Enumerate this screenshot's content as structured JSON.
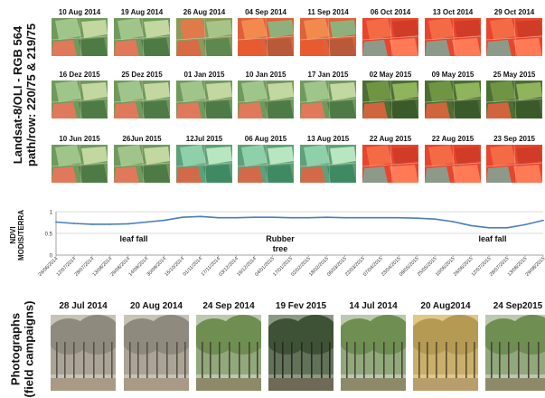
{
  "landsat": {
    "title_line1": "Landsat-8/OLI - RGB 564",
    "title_line2": "path/row: 220/75 & 219/75",
    "rows": [
      {
        "tiles": [
          {
            "date": "10 Aug 2014",
            "palette": "green"
          },
          {
            "date": "19 Aug 2014",
            "palette": "green"
          },
          {
            "date": "26 Aug 2014",
            "palette": "mixed"
          },
          {
            "date": "04 Sep 2014",
            "palette": "orange"
          },
          {
            "date": "11 Sep 2014",
            "palette": "orange"
          },
          {
            "date": "06 Oct 2014",
            "palette": "red"
          },
          {
            "date": "13 Oct 2014",
            "palette": "red"
          },
          {
            "date": "29 Oct 2014",
            "palette": "red"
          }
        ]
      },
      {
        "tiles": [
          {
            "date": "16 Dez 2015",
            "palette": "green"
          },
          {
            "date": "25 Dez 2015",
            "palette": "green"
          },
          {
            "date": "01 Jan 2015",
            "palette": "green"
          },
          {
            "date": "10 Jan 2015",
            "palette": "green"
          },
          {
            "date": "17 Jan 2015",
            "palette": "green"
          },
          {
            "date": "02 May 2015",
            "palette": "dark"
          },
          {
            "date": "09 May 2015",
            "palette": "dark"
          },
          {
            "date": "25 May 2015",
            "palette": "dark"
          }
        ]
      },
      {
        "tiles": [
          {
            "date": "10 Jun 2015",
            "palette": "green"
          },
          {
            "date": "26Jun 2015",
            "palette": "green"
          },
          {
            "date": "12Jul 2015",
            "palette": "cyan"
          },
          {
            "date": "06 Aug 2015",
            "palette": "cyan"
          },
          {
            "date": "13 Aug 2015",
            "palette": "cyan"
          },
          {
            "date": "22 Aug 2015",
            "palette": "red"
          },
          {
            "date": "22 Aug 2015",
            "palette": "red"
          },
          {
            "date": "23 Sep 2015",
            "palette": "red"
          }
        ]
      }
    ]
  },
  "ndvi": {
    "ylabel_line1": "NDVI",
    "ylabel_line2": "MODIS/TERRA",
    "annotations": [
      {
        "text": "leaf fall",
        "key": "leaf-fall-1"
      },
      {
        "text": "Rubber",
        "key": "rubber"
      },
      {
        "text": "tree",
        "key": "tree"
      },
      {
        "text": "leaf fall",
        "key": "leaf-fall-2"
      }
    ]
  },
  "chart_data": {
    "type": "line",
    "title": "",
    "xlabel": "",
    "ylabel": "NDVI MODIS/TERRA",
    "ylim": [
      0,
      1
    ],
    "yticks": [
      "0",
      "0.5",
      "1"
    ],
    "grid": true,
    "legend": "none",
    "line_color": "#4a7ebb",
    "x": [
      "26/06/2014",
      "12/07/2014",
      "28/07/2014",
      "13/08/2014",
      "29/08/2014",
      "14/09/2014",
      "30/09/2014",
      "16/10/2014",
      "01/11/2014",
      "17/11/2014",
      "03/12/2014",
      "19/12/2014",
      "04/01/2015",
      "17/01/2015",
      "02/02/2015",
      "18/02/2015",
      "06/03/2015",
      "22/03/2015",
      "07/04/2015",
      "23/04/2015",
      "09/05/2015",
      "25/05/2015",
      "10/06/2015",
      "26/06/2015",
      "12/07/2015",
      "28/07/2015",
      "13/08/2015",
      "29/08/2015"
    ],
    "series": [
      {
        "values": [
          0.76,
          0.73,
          0.71,
          0.71,
          0.72,
          0.76,
          0.8,
          0.87,
          0.89,
          0.86,
          0.86,
          0.87,
          0.87,
          0.86,
          0.86,
          0.87,
          0.86,
          0.86,
          0.86,
          0.86,
          0.85,
          0.83,
          0.77,
          0.68,
          0.63,
          0.63,
          0.7,
          0.8
        ]
      }
    ]
  },
  "photos": {
    "title_line1": "Photographs",
    "title_line2": "(field campaigns)",
    "items": [
      {
        "date": "28 Jul 2014",
        "scene": "bare"
      },
      {
        "date": "20 Aug 2014",
        "scene": "bare"
      },
      {
        "date": "24 Sep 2014",
        "scene": "leafy"
      },
      {
        "date": "19 Fev 2015",
        "scene": "dense"
      },
      {
        "date": "14 Jul 2014",
        "scene": "leafy"
      },
      {
        "date": "20 Aug2014",
        "scene": "golden"
      },
      {
        "date": "24 Sep2015",
        "scene": "leafy"
      }
    ]
  }
}
